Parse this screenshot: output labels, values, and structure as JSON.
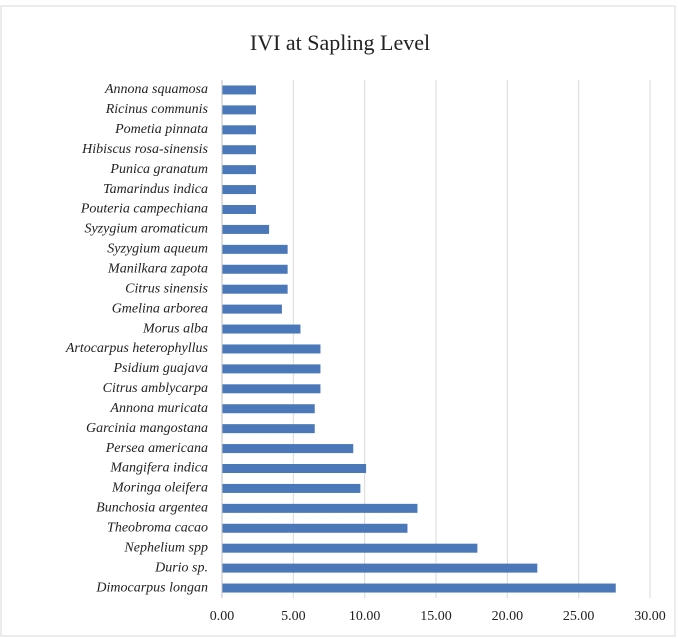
{
  "chart_data": {
    "type": "bar",
    "orientation": "horizontal",
    "title": "IVI at Sapling Level",
    "categories": [
      "Annona squamosa",
      "Ricinus communis",
      "Pometia pinnata",
      "Hibiscus rosa-sinensis",
      "Punica granatum",
      "Tamarindus indica",
      "Pouteria campechiana",
      "Syzygium aromaticum",
      "Syzygium aqueum",
      "Manilkara zapota",
      "Citrus sinensis",
      "Gmelina arborea",
      "Morus alba",
      "Artocarpus heterophyllus",
      "Psidium guajava",
      "Citrus amblycarpa",
      "Annona muricata",
      "Garcinia mangostana",
      "Persea americana",
      "Mangifera indica",
      "Moringa oleifera",
      "Bunchosia argentea",
      "Theobroma cacao",
      "Nephelium spp",
      "Durio sp.",
      "Dimocarpus longan"
    ],
    "values": [
      2.38,
      2.38,
      2.38,
      2.38,
      2.38,
      2.38,
      2.38,
      3.3,
      4.6,
      4.6,
      4.6,
      4.2,
      5.5,
      6.9,
      6.9,
      6.9,
      6.5,
      6.5,
      9.2,
      10.1,
      9.7,
      13.7,
      13.0,
      17.9,
      22.1,
      27.6
    ],
    "color": "#4a78b8",
    "xlim": [
      0,
      30
    ],
    "xticks": [
      {
        "value": 0,
        "label": "0.00"
      },
      {
        "value": 5,
        "label": "5.00"
      },
      {
        "value": 10,
        "label": "10.00"
      },
      {
        "value": 15,
        "label": "15.00"
      },
      {
        "value": 20,
        "label": "20.00"
      },
      {
        "value": 25,
        "label": "25.00"
      },
      {
        "value": 30,
        "label": "30.00"
      }
    ],
    "grid": true
  }
}
